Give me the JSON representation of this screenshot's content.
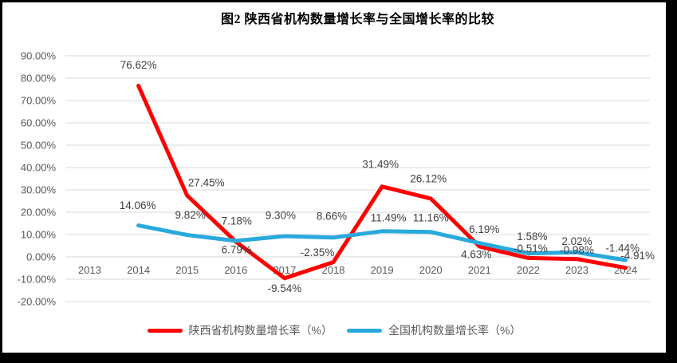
{
  "frame": {
    "outer_background": "#000000",
    "inner_background": "#FFFFFF"
  },
  "chart_data": {
    "type": "line",
    "title": "图2 陕西省机构数量增长率与全国增长率的比较",
    "categories": [
      "2013",
      "2014",
      "2015",
      "2016",
      "2017",
      "2018",
      "2019",
      "2020",
      "2021",
      "2022",
      "2023",
      "2024"
    ],
    "series": [
      {
        "name": "陕西省机构数量增长率（%）",
        "color": "#FF0000",
        "values": [
          null,
          76.62,
          27.45,
          6.79,
          -9.54,
          -2.35,
          31.49,
          26.12,
          4.63,
          -0.51,
          -0.98,
          -4.91
        ],
        "label_offsets": [
          [
            0,
            0
          ],
          [
            0,
            -26
          ],
          [
            24,
            -16
          ],
          [
            1,
            10
          ],
          [
            0,
            13
          ],
          [
            -20,
            -12
          ],
          [
            -2,
            -28
          ],
          [
            -3,
            -25
          ],
          [
            -4,
            10
          ],
          [
            3,
            -12
          ],
          [
            0,
            -11
          ],
          [
            15,
            -15
          ]
        ],
        "leader_indexes": [
          9
        ]
      },
      {
        "name": "全国机构数量增长率（%）",
        "color": "#29A9DC",
        "values": [
          null,
          14.06,
          9.82,
          7.18,
          9.3,
          8.66,
          11.49,
          11.16,
          6.19,
          1.58,
          2.02,
          -1.44
        ],
        "label_offsets": [
          [
            0,
            0
          ],
          [
            -1,
            -25
          ],
          [
            4,
            -25
          ],
          [
            1,
            -25
          ],
          [
            -5,
            -26
          ],
          [
            -2,
            -27
          ],
          [
            8,
            -17
          ],
          [
            0,
            -18
          ],
          [
            6,
            -17
          ],
          [
            5,
            -21
          ],
          [
            0,
            -14
          ],
          [
            -4,
            -15
          ]
        ],
        "leader_indexes": []
      }
    ],
    "ylim": [
      -20,
      90
    ],
    "ytick_step": 10,
    "ytick_format": "0.00%",
    "xlabel": "",
    "ylabel": "",
    "grid": true,
    "legend_position": "bottom",
    "data_labels_visible": true,
    "gridline_color": "#D9D9D9",
    "axis_text_color": "#595959",
    "data_label_color": "#404040",
    "leader_line_color": "#7F7F7F"
  }
}
